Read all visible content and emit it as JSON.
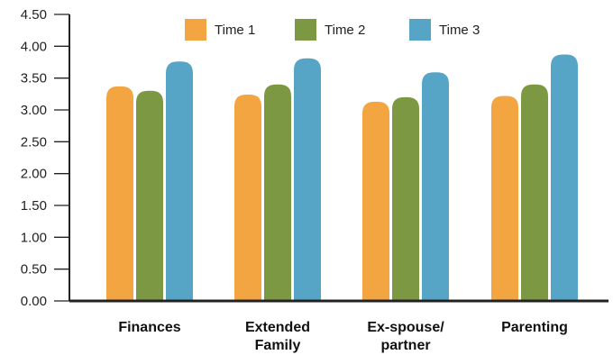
{
  "chart_data": {
    "type": "bar",
    "title": "",
    "xlabel": "",
    "ylabel": "",
    "ylim": [
      0,
      4.5
    ],
    "yticks": [
      "0.00",
      "0.50",
      "1.00",
      "1.50",
      "2.00",
      "2.50",
      "3.00",
      "3.50",
      "4.00",
      "4.50"
    ],
    "categories": [
      [
        "Finances"
      ],
      [
        "Extended",
        "Family"
      ],
      [
        "Ex-spouse/",
        "partner"
      ],
      [
        "Parenting"
      ]
    ],
    "series": [
      {
        "name": "Time 1",
        "color": "#F2A541",
        "values": [
          3.37,
          3.24,
          3.13,
          3.22
        ]
      },
      {
        "name": "Time 2",
        "color": "#7D9843",
        "values": [
          3.3,
          3.4,
          3.2,
          3.4
        ]
      },
      {
        "name": "Time 3",
        "color": "#56A5C6",
        "values": [
          3.76,
          3.81,
          3.59,
          3.87
        ]
      }
    ],
    "legend_position": "top",
    "grid": false
  }
}
